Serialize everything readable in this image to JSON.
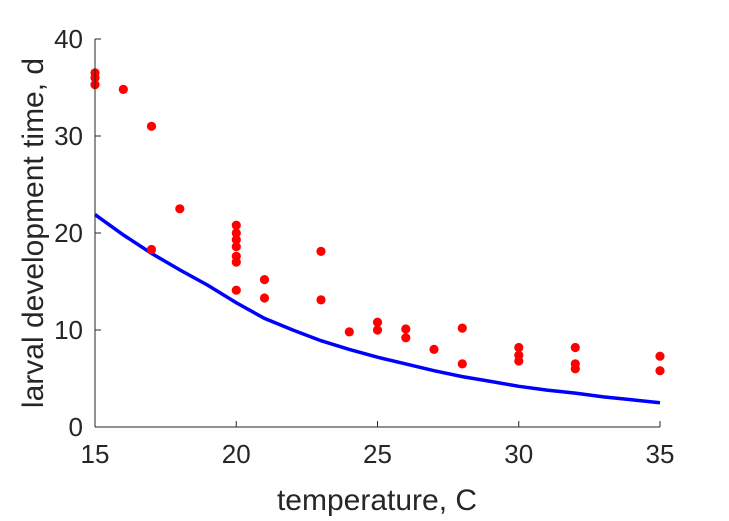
{
  "chart_data": {
    "type": "scatter",
    "xlabel": "temperature, C",
    "ylabel": "larval development time, d",
    "xlim": [
      15,
      35
    ],
    "ylim": [
      0,
      40
    ],
    "xticks": [
      15,
      20,
      25,
      30,
      35
    ],
    "yticks": [
      0,
      10,
      20,
      30,
      40
    ],
    "grid": false,
    "colors": {
      "scatter": "#ff0000",
      "line": "#0000ff",
      "axis": "#262626"
    },
    "series": [
      {
        "type": "scatter",
        "points": [
          [
            15,
            36.5
          ],
          [
            15,
            36.0
          ],
          [
            15,
            35.3
          ],
          [
            16,
            34.8
          ],
          [
            17,
            31.0
          ],
          [
            17,
            18.3
          ],
          [
            18,
            22.5
          ],
          [
            20,
            20.8
          ],
          [
            20,
            20.0
          ],
          [
            20,
            19.3
          ],
          [
            20,
            18.6
          ],
          [
            20,
            17.6
          ],
          [
            20,
            17.0
          ],
          [
            20,
            14.1
          ],
          [
            21,
            15.2
          ],
          [
            21,
            13.3
          ],
          [
            23,
            18.1
          ],
          [
            23,
            13.1
          ],
          [
            24,
            9.8
          ],
          [
            25,
            10.8
          ],
          [
            25,
            10.0
          ],
          [
            26,
            10.1
          ],
          [
            26,
            9.2
          ],
          [
            27,
            8.0
          ],
          [
            28,
            10.2
          ],
          [
            28,
            6.5
          ],
          [
            30,
            8.2
          ],
          [
            30,
            7.4
          ],
          [
            30,
            6.8
          ],
          [
            32,
            8.2
          ],
          [
            32,
            6.5
          ],
          [
            32,
            6.0
          ],
          [
            35,
            7.3
          ],
          [
            35,
            5.8
          ]
        ]
      },
      {
        "type": "line",
        "x": [
          15,
          16,
          17,
          18,
          19,
          20,
          21,
          22,
          23,
          24,
          25,
          26,
          27,
          28,
          29,
          30,
          31,
          32,
          33,
          34,
          35
        ],
        "y": [
          21.9,
          19.8,
          17.9,
          16.2,
          14.6,
          12.8,
          11.2,
          10.0,
          8.9,
          8.0,
          7.2,
          6.5,
          5.8,
          5.2,
          4.7,
          4.2,
          3.8,
          3.5,
          3.1,
          2.8,
          2.5
        ]
      }
    ]
  }
}
